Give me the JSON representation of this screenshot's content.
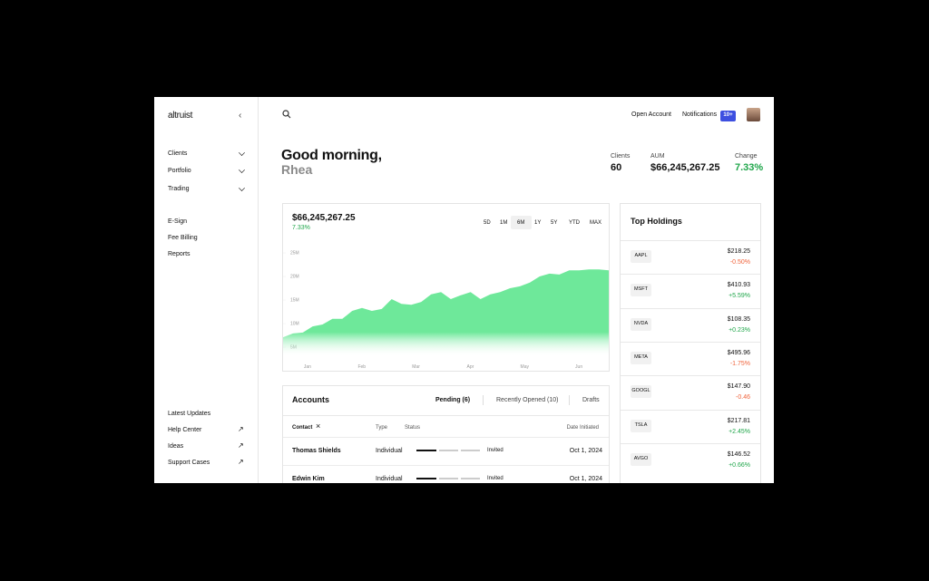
{
  "sidebar": {
    "brand": "altruist",
    "nav": [
      "Clients",
      "Portfolio",
      "Trading"
    ],
    "links": [
      "E-Sign",
      "Fee Billing",
      "Reports"
    ],
    "footer": [
      "Latest Updates",
      "Help Center",
      "Ideas",
      "Support Cases"
    ]
  },
  "header": {
    "actions": [
      "Open Account",
      "Notifications"
    ],
    "badge": "10+"
  },
  "greeting": {
    "line1": "Good morning,",
    "name": "Rhea"
  },
  "stats": [
    {
      "label": "Clients",
      "value": "60"
    },
    {
      "label": "AUM",
      "value": "$66,245,267.25"
    },
    {
      "label": "Change",
      "value": "7.33%",
      "color": "#1fa64a"
    }
  ],
  "chart_data": {
    "type": "area",
    "title": "$66,245,267.25",
    "subtitle": "7.33%",
    "subtitle_color": "#1fa64a",
    "ranges": [
      "5D",
      "1M",
      "6M",
      "1Y",
      "5Y",
      "YTD",
      "MAX"
    ],
    "selected_range": 2,
    "months": [
      "Jan",
      "Feb",
      "Mar",
      "Apr",
      "May",
      "Jun"
    ],
    "color": "#6ee89a",
    "values": [
      7100000,
      7900000,
      8100000,
      9400000,
      9800000,
      11000000,
      11000000,
      12700000,
      13300000,
      12700000,
      13100000,
      15200000,
      14200000,
      14000000,
      14600000,
      16200000,
      16700000,
      15200000,
      16000000,
      16700000,
      15200000,
      16200000,
      16700000,
      17500000,
      17900000,
      18700000,
      20000000,
      20600000,
      20400000,
      21300000,
      21300000,
      21500000,
      21500000,
      21300000
    ],
    "ylim": [
      3000000,
      27000000
    ],
    "yticks": [
      {
        "value": 5000000,
        "label": "5M"
      },
      {
        "value": 10000000,
        "label": "10M"
      },
      {
        "value": 15000000,
        "label": "15M"
      },
      {
        "value": 20000000,
        "label": "20M"
      },
      {
        "value": 25000000,
        "label": "25M"
      }
    ]
  },
  "holdings": {
    "title": "Top Holdings",
    "rows": [
      {
        "symbol": "AAPL",
        "price": "$218.25",
        "change": "-0.50%",
        "color": "#f0643c"
      },
      {
        "symbol": "MSFT",
        "price": "$410.93",
        "change": "+5.59%",
        "color": "#1fa64a"
      },
      {
        "symbol": "NVDA",
        "price": "$108.35",
        "change": "+0.23%",
        "color": "#1fa64a"
      },
      {
        "symbol": "META",
        "price": "$495.96",
        "change": "-1.75%",
        "color": "#f0643c"
      },
      {
        "symbol": "GOOGL",
        "price": "$147.90",
        "change": "-0.46",
        "color": "#f0643c"
      },
      {
        "symbol": "TSLA",
        "price": "$217.81",
        "change": "+2.45%",
        "color": "#1fa64a"
      },
      {
        "symbol": "AVGO",
        "price": "$146.52",
        "change": "+0.66%",
        "color": "#1fa64a"
      }
    ]
  },
  "accounts": {
    "title": "Accounts",
    "tabs": [
      "Pending (6)",
      "Recently Opened (10)",
      "Drafts"
    ],
    "columns": [
      "Contact",
      "Type",
      "Status",
      "Date Initiated"
    ],
    "rows": [
      [
        "Thomas Shields",
        "Individual",
        "Invited",
        "Oct 1, 2024"
      ],
      [
        "Edwin Kim",
        "Individual",
        "Invited",
        "Oct 1, 2024"
      ]
    ]
  }
}
